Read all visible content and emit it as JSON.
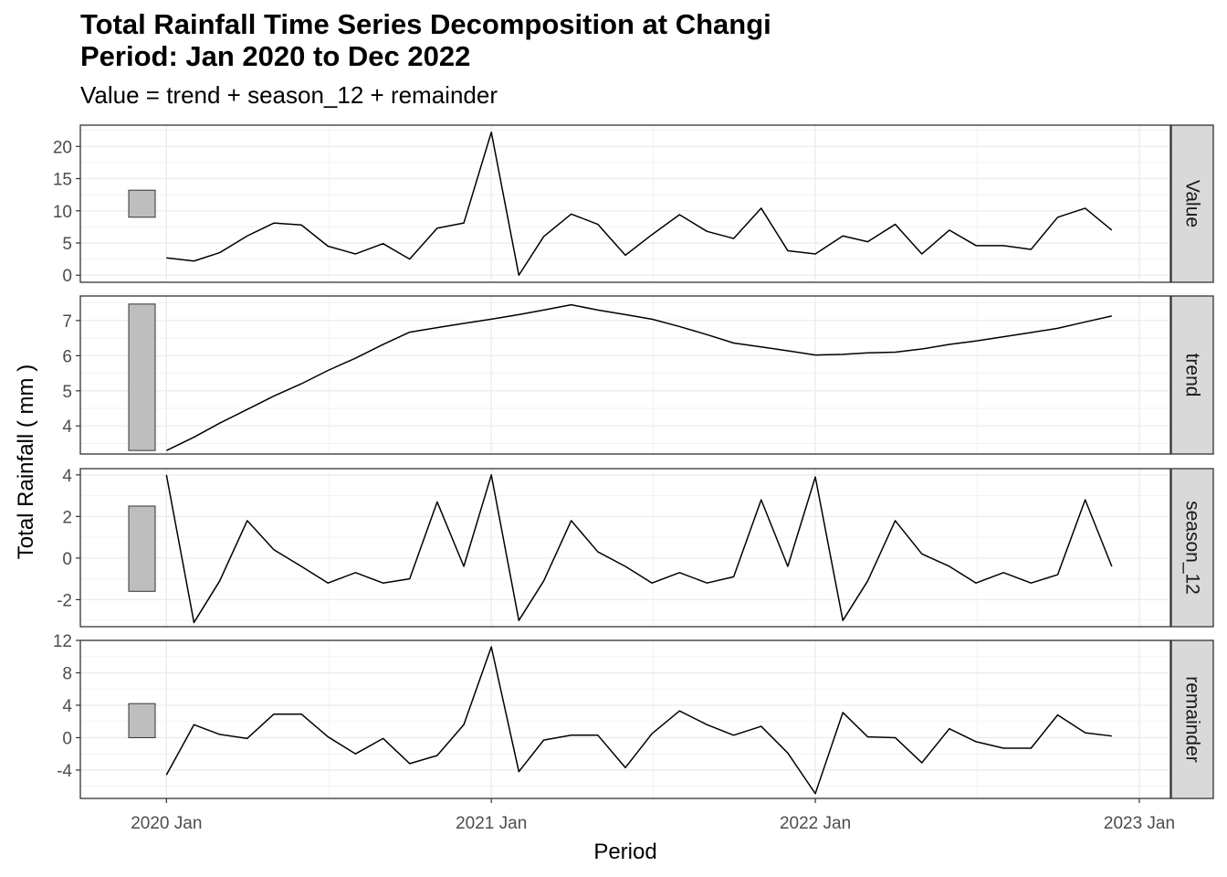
{
  "title_line1": "Total Rainfall Time Series Decomposition at Changi",
  "title_line2": "Period: Jan 2020 to Dec 2022",
  "subtitle": "Value = trend + season_12 + remainder",
  "chart_data": {
    "type": "line",
    "xlabel": "Period",
    "ylabel": "Total Rainfall ( mm )",
    "x_ticks": [
      "2020 Jan",
      "2021 Jan",
      "2022 Jan",
      "2023 Jan"
    ],
    "x": [
      "2020-01",
      "2020-02",
      "2020-03",
      "2020-04",
      "2020-05",
      "2020-06",
      "2020-07",
      "2020-08",
      "2020-09",
      "2020-10",
      "2020-11",
      "2020-12",
      "2021-01",
      "2021-02",
      "2021-03",
      "2021-04",
      "2021-05",
      "2021-06",
      "2021-07",
      "2021-08",
      "2021-09",
      "2021-10",
      "2021-11",
      "2021-12",
      "2022-01",
      "2022-02",
      "2022-03",
      "2022-04",
      "2022-05",
      "2022-06",
      "2022-07",
      "2022-08",
      "2022-09",
      "2022-10",
      "2022-11",
      "2022-12"
    ],
    "xlim": [
      "2019-09-26",
      "2023-02-05"
    ],
    "grid": true,
    "line_color": "#000000",
    "scale_bar_color": "#bebebe",
    "panels": [
      {
        "name": "Value",
        "ylim": [
          -1.1,
          23.3
        ],
        "y_ticks": [
          0,
          5,
          10,
          15,
          20
        ],
        "y_minor": [
          2.5,
          7.5,
          12.5,
          17.5,
          22.5
        ],
        "scale_bar": [
          9.0,
          13.2
        ],
        "values": [
          2.7,
          2.2,
          3.5,
          6.1,
          8.1,
          7.8,
          4.5,
          3.3,
          4.9,
          2.5,
          7.3,
          8.1,
          22.2,
          0.0,
          6.0,
          9.5,
          7.9,
          3.1,
          6.3,
          9.4,
          6.8,
          5.7,
          10.4,
          3.8,
          3.3,
          6.1,
          5.2,
          7.9,
          3.3,
          7.0,
          4.6,
          4.6,
          4.0,
          9.0,
          10.4,
          7.0
        ]
      },
      {
        "name": "trend",
        "ylim": [
          3.2,
          7.7
        ],
        "y_ticks": [
          4,
          5,
          6,
          7
        ],
        "y_minor": [
          3.5,
          4.5,
          5.5,
          6.5,
          7.5
        ],
        "scale_bar": [
          3.3,
          7.47
        ],
        "values": [
          3.3,
          3.68,
          4.08,
          4.47,
          4.85,
          5.2,
          5.58,
          5.93,
          6.32,
          6.67,
          6.8,
          6.92,
          7.04,
          7.17,
          7.3,
          7.45,
          7.3,
          7.17,
          7.04,
          6.83,
          6.6,
          6.36,
          6.25,
          6.14,
          6.02,
          6.04,
          6.08,
          6.1,
          6.19,
          6.32,
          6.42,
          6.54,
          6.66,
          6.78,
          6.96,
          7.13
        ]
      },
      {
        "name": "season_12",
        "ylim": [
          -3.3,
          4.3
        ],
        "y_ticks": [
          -2,
          0,
          2,
          4
        ],
        "y_minor": [
          -3,
          -1,
          1,
          3
        ],
        "scale_bar": [
          -1.6,
          2.5
        ],
        "values": [
          4.0,
          -3.1,
          -1.1,
          1.8,
          0.4,
          -0.4,
          -1.2,
          -0.7,
          -1.2,
          -1.0,
          2.7,
          -0.4,
          4.0,
          -3.0,
          -1.1,
          1.8,
          0.3,
          -0.4,
          -1.2,
          -0.7,
          -1.2,
          -0.9,
          2.8,
          -0.4,
          3.9,
          -3.0,
          -1.1,
          1.8,
          0.2,
          -0.4,
          -1.2,
          -0.7,
          -1.2,
          -0.8,
          2.8,
          -0.4
        ]
      },
      {
        "name": "remainder",
        "ylim": [
          -7.5,
          12.0
        ],
        "y_ticks": [
          -4,
          0,
          4,
          8,
          12
        ],
        "y_minor": [
          -6,
          -2,
          2,
          6,
          10
        ],
        "scale_bar": [
          0.0,
          4.2
        ],
        "values": [
          -4.6,
          1.6,
          0.4,
          -0.1,
          2.9,
          2.9,
          0.1,
          -2.0,
          -0.1,
          -3.2,
          -2.2,
          1.6,
          11.2,
          -4.2,
          -0.3,
          0.3,
          0.3,
          -3.7,
          0.5,
          3.3,
          1.6,
          0.3,
          1.4,
          -1.9,
          -6.9,
          3.1,
          0.1,
          0.0,
          -3.1,
          1.1,
          -0.5,
          -1.3,
          -1.3,
          2.8,
          0.6,
          0.2
        ]
      }
    ]
  }
}
